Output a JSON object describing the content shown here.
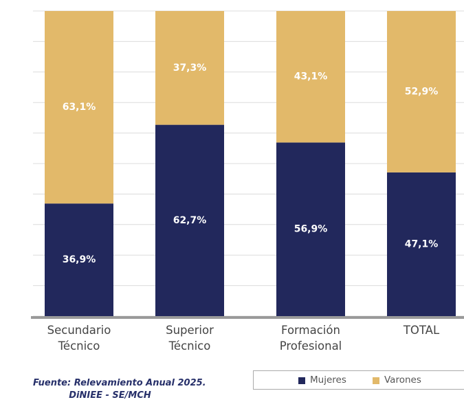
{
  "chart_data": {
    "type": "stacked_bar",
    "categories": [
      "Secundario\nTécnico",
      "Superior\nTécnico",
      "Formación\nProfesional",
      "TOTAL"
    ],
    "series": [
      {
        "name": "Mujeres",
        "color": "#22285c",
        "values": [
          36.9,
          62.7,
          56.9,
          47.1
        ],
        "value_labels": [
          "36,9%",
          "62,7%",
          "56,9%",
          "47,1%"
        ]
      },
      {
        "name": "Varones",
        "color": "#e2b96a",
        "values": [
          63.1,
          37.3,
          43.1,
          52.9
        ],
        "value_labels": [
          "63,1%",
          "37,3%",
          "43,1%",
          "52,9%"
        ]
      }
    ],
    "ylim": [
      0,
      100
    ],
    "yticks": [
      0,
      10,
      20,
      30,
      40,
      50,
      60,
      70,
      80,
      90,
      100
    ],
    "grid": true,
    "source": [
      "Fuente: Relevamiento Anual 2025.",
      "DiNIEE - SE/MCH"
    ]
  }
}
